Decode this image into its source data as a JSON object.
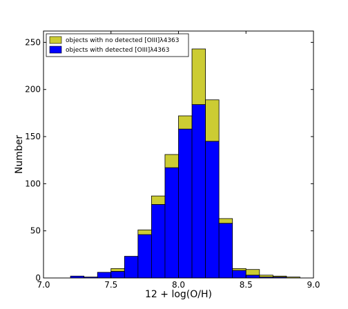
{
  "chart_data": {
    "type": "bar",
    "subtype": "stacked-histogram",
    "title": "",
    "xlabel": "12 + log(O/H)",
    "ylabel": "Number",
    "xlim": [
      7.0,
      9.0
    ],
    "ylim": [
      0,
      262
    ],
    "x_ticks": [
      "7.0",
      "7.5",
      "8.0",
      "8.5",
      "9.0"
    ],
    "y_ticks": [
      "0",
      "50",
      "100",
      "150",
      "200",
      "250"
    ],
    "x_tick_values": [
      7.0,
      7.5,
      8.0,
      8.5,
      9.0
    ],
    "y_tick_values": [
      0,
      50,
      100,
      150,
      200,
      250
    ],
    "bin_edges": [
      7.2,
      7.3,
      7.4,
      7.5,
      7.6,
      7.7,
      7.8,
      7.9,
      8.0,
      8.1,
      8.2,
      8.3,
      8.4,
      8.5,
      8.6,
      8.7,
      8.8,
      8.9
    ],
    "legend_position": "top-left",
    "grid": false,
    "series": [
      {
        "name": "objects with detected [OIII]λ4363",
        "color": "#0000ff",
        "values": [
          2,
          1,
          6,
          7,
          23,
          46,
          78,
          117,
          158,
          184,
          145,
          58,
          8,
          3,
          1,
          1,
          0
        ]
      },
      {
        "name": "objects with no detected [OIII]λ4363",
        "color": "#cccc33",
        "values": [
          0,
          0,
          0,
          3,
          0,
          5,
          9,
          14,
          14,
          59,
          44,
          5,
          2,
          6,
          2,
          1,
          1
        ]
      }
    ]
  }
}
